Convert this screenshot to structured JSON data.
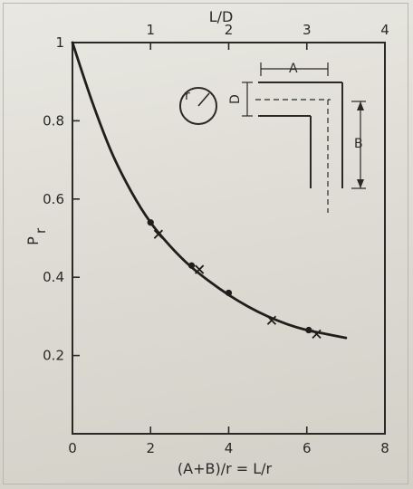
{
  "chart_data": {
    "type": "line",
    "title": "",
    "xlabel": "(A+B)/r = L/r",
    "ylabel": "P",
    "ylabel_subscript": "r",
    "top_xlabel": "L/D",
    "xlim": [
      0,
      8
    ],
    "ylim": [
      0,
      1
    ],
    "x_ticks": [
      0,
      2,
      4,
      6,
      8
    ],
    "y_ticks": [
      0.2,
      0.4,
      0.6,
      0.8,
      1
    ],
    "top_ticks": [
      1,
      2,
      3,
      4
    ],
    "grid": false,
    "series": [
      {
        "kind": "curve",
        "x": [
          0,
          0.5,
          1,
          1.5,
          2,
          2.5,
          3,
          3.5,
          4,
          4.5,
          5,
          5.5,
          6,
          6.5,
          7
        ],
        "y": [
          1.0,
          0.85,
          0.72,
          0.62,
          0.54,
          0.48,
          0.43,
          0.39,
          0.355,
          0.325,
          0.3,
          0.28,
          0.265,
          0.255,
          0.245
        ]
      },
      {
        "kind": "dots",
        "x": [
          2.0,
          3.05,
          4.0,
          6.05
        ],
        "y": [
          0.54,
          0.43,
          0.36,
          0.265
        ]
      },
      {
        "kind": "crosses",
        "x": [
          2.2,
          3.25,
          5.1,
          6.25
        ],
        "y": [
          0.51,
          0.42,
          0.29,
          0.255
        ]
      }
    ]
  },
  "inset": {
    "label_r": "r",
    "label_a": "A",
    "label_b": "B",
    "label_d": "D"
  }
}
